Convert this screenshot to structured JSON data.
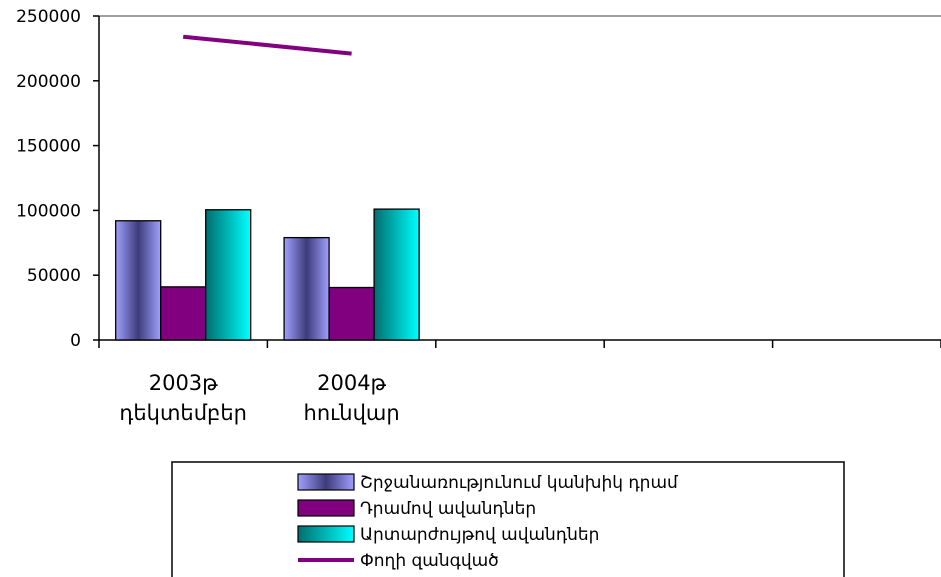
{
  "chart_data": {
    "type": "bar",
    "categories": [
      {
        "line1": "2003թ",
        "line2": "դեկտեմբեր"
      },
      {
        "line1": "2004թ",
        "line2": "հունվար"
      },
      {
        "line1": "",
        "line2": ""
      },
      {
        "line1": "",
        "line2": ""
      },
      {
        "line1": "",
        "line2": ""
      }
    ],
    "series": [
      {
        "name": "Շրջանառությունում կանխիկ դրամ",
        "kind": "bar",
        "values": [
          92000,
          79000,
          null,
          null,
          null
        ],
        "color": "#9999ff",
        "color_dark": "#30306a"
      },
      {
        "name": "Դրամով ավանդներ",
        "kind": "bar",
        "values": [
          41000,
          40500,
          null,
          null,
          null
        ],
        "color": "#800080"
      },
      {
        "name": "Արտարժույթով ավանդներ",
        "kind": "bar",
        "values": [
          100500,
          101000,
          null,
          null,
          null
        ],
        "color": "#008080",
        "color_light": "#00ffff"
      },
      {
        "name": "Փողի զանգված",
        "kind": "line",
        "values": [
          234000,
          221000,
          null,
          null,
          null
        ],
        "color": "#800080"
      }
    ],
    "ylim": [
      0,
      250000
    ],
    "yticks": [
      "0",
      "50000",
      "100000",
      "150000",
      "200000",
      "250000"
    ],
    "legend_position": "bottom",
    "grid": false
  }
}
